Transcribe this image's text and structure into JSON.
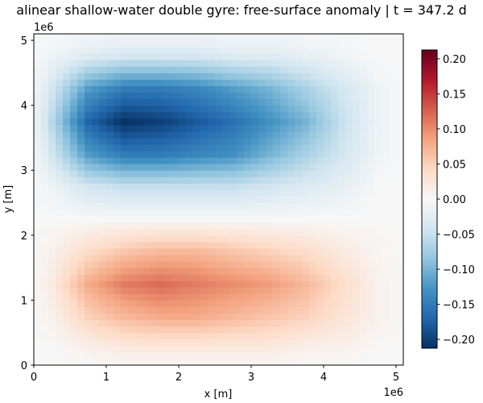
{
  "chart_data": {
    "type": "heatmap",
    "title": "alinear shallow-water double gyre: free-surface anomaly | t = 347.2 d",
    "xlabel": "x [m]",
    "ylabel": "y [m]",
    "x_offset_label": "1e6",
    "y_offset_label": "1e6",
    "xlim": [
      0,
      5100000
    ],
    "ylim": [
      0,
      5100000
    ],
    "x_ticks": [
      {
        "value": 0,
        "label": "0"
      },
      {
        "value": 1000000,
        "label": "1"
      },
      {
        "value": 2000000,
        "label": "2"
      },
      {
        "value": 3000000,
        "label": "3"
      },
      {
        "value": 4000000,
        "label": "4"
      },
      {
        "value": 5000000,
        "label": "5"
      }
    ],
    "y_ticks": [
      {
        "value": 0,
        "label": "0"
      },
      {
        "value": 1000000,
        "label": "1"
      },
      {
        "value": 2000000,
        "label": "2"
      },
      {
        "value": 3000000,
        "label": "3"
      },
      {
        "value": 4000000,
        "label": "4"
      },
      {
        "value": 5000000,
        "label": "5"
      }
    ],
    "colormap": "RdBu_r",
    "colormap_stops": [
      "#053061",
      "#2166ac",
      "#4393c3",
      "#92c5de",
      "#d1e5f0",
      "#f7f7f7",
      "#fddbc7",
      "#f4a582",
      "#d6604d",
      "#b2182b",
      "#67001f"
    ],
    "color_range": [
      -0.2125,
      0.2125
    ],
    "colorbar_ticks": [
      {
        "value": 0.2,
        "label": "0.20"
      },
      {
        "value": 0.15,
        "label": "0.15"
      },
      {
        "value": 0.1,
        "label": "0.10"
      },
      {
        "value": 0.05,
        "label": "0.05"
      },
      {
        "value": 0.0,
        "label": "0.00"
      },
      {
        "value": -0.05,
        "label": "−0.05"
      },
      {
        "value": -0.1,
        "label": "−0.10"
      },
      {
        "value": -0.15,
        "label": "−0.15"
      },
      {
        "value": -0.2,
        "label": "−0.20"
      }
    ],
    "grid_x_centers": [
      250000,
      750000,
      1250000,
      1750000,
      2250000,
      2750000,
      3250000,
      3750000,
      4250000,
      4750000
    ],
    "grid_y_centers": [
      4750000,
      4250000,
      3750000,
      3250000,
      2750000,
      2250000,
      1750000,
      1250000,
      750000,
      250000
    ],
    "values": [
      [
        -0.01,
        -0.03,
        -0.04,
        -0.04,
        -0.04,
        -0.03,
        -0.03,
        -0.02,
        -0.01,
        0
      ],
      [
        -0.04,
        -0.12,
        -0.15,
        -0.15,
        -0.14,
        -0.12,
        -0.1,
        -0.07,
        -0.04,
        -0.01
      ],
      [
        -0.06,
        -0.17,
        -0.21,
        -0.2,
        -0.18,
        -0.16,
        -0.13,
        -0.1,
        -0.05,
        -0.01
      ],
      [
        -0.04,
        -0.12,
        -0.15,
        -0.15,
        -0.14,
        -0.13,
        -0.1,
        -0.07,
        -0.04,
        -0.01
      ],
      [
        -0.01,
        -0.04,
        -0.05,
        -0.05,
        -0.05,
        -0.05,
        -0.04,
        -0.03,
        -0.02,
        0
      ],
      [
        0,
        0,
        0,
        0,
        0,
        0,
        0,
        0,
        0,
        0
      ],
      [
        0.01,
        0.04,
        0.06,
        0.07,
        0.07,
        0.06,
        0.05,
        0.04,
        0.02,
        0.005
      ],
      [
        0.02,
        0.08,
        0.11,
        0.12,
        0.11,
        0.1,
        0.09,
        0.07,
        0.04,
        0.01
      ],
      [
        0.01,
        0.05,
        0.07,
        0.08,
        0.08,
        0.07,
        0.06,
        0.05,
        0.03,
        0.01
      ],
      [
        0,
        0.01,
        0.02,
        0.02,
        0.02,
        0.02,
        0.02,
        0.01,
        0.01,
        0
      ]
    ],
    "grid": false
  }
}
